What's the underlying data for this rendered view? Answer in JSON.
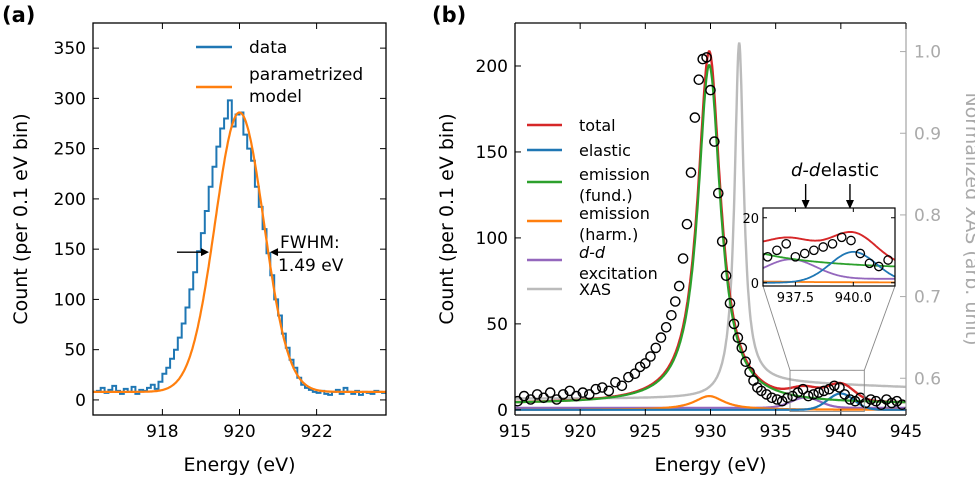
{
  "chart_data": [
    {
      "panel_label": "(a)",
      "type": "line",
      "xlabel": "Energy (eV)",
      "ylabel": "Count (per 0.1 eV bin)",
      "xlim": [
        916.2,
        923.8
      ],
      "ylim": [
        -15,
        375
      ],
      "x_ticks": [
        918,
        920,
        922
      ],
      "y_ticks": [
        0,
        50,
        100,
        150,
        200,
        250,
        300,
        350
      ],
      "legend": {
        "placement": "top-right",
        "entries": [
          "data",
          "parametrized model"
        ]
      },
      "annotation": {
        "line1": "FWHM:",
        "line2": "1.49 eV",
        "left_x": 919.26,
        "right_x": 920.74,
        "y": 147
      },
      "series": [
        {
          "name": "data",
          "style": "step",
          "color": "#1f77b4",
          "x": [
            916.2,
            916.3,
            916.4,
            916.5,
            916.6,
            916.7,
            916.8,
            916.9,
            917.0,
            917.1,
            917.2,
            917.3,
            917.4,
            917.5,
            917.6,
            917.7,
            917.8,
            917.9,
            918.0,
            918.1,
            918.2,
            918.3,
            918.4,
            918.5,
            918.6,
            918.7,
            918.8,
            918.9,
            919.0,
            919.1,
            919.2,
            919.3,
            919.4,
            919.5,
            919.6,
            919.7,
            919.8,
            919.9,
            920.0,
            920.1,
            920.2,
            920.3,
            920.4,
            920.5,
            920.6,
            920.7,
            920.8,
            920.9,
            921.0,
            921.1,
            921.2,
            921.3,
            921.4,
            921.5,
            921.6,
            921.7,
            921.8,
            921.9,
            922.0,
            922.1,
            922.2,
            922.3,
            922.4,
            922.5,
            922.6,
            922.7,
            922.8,
            922.9,
            923.0,
            923.1,
            923.2,
            923.3,
            923.4,
            923.5,
            923.6,
            923.7
          ],
          "values": [
            8,
            9,
            12,
            7,
            10,
            14,
            9,
            6,
            11,
            8,
            13,
            6,
            10,
            9,
            12,
            15,
            11,
            18,
            26,
            32,
            41,
            50,
            62,
            76,
            92,
            110,
            127,
            148,
            166,
            188,
            212,
            232,
            252,
            270,
            280,
            298,
            272,
            284,
            286,
            264,
            250,
            238,
            212,
            192,
            170,
            146,
            124,
            100,
            84,
            66,
            52,
            40,
            32,
            22,
            15,
            12,
            10,
            8,
            7,
            9,
            6,
            5,
            8,
            10,
            6,
            12,
            8,
            6,
            9,
            5,
            8,
            7,
            6,
            9,
            8,
            7
          ]
        },
        {
          "name": "parametrized model",
          "style": "smooth",
          "color": "#ff7f0e",
          "model": {
            "center": 920.0,
            "amplitude": 286,
            "sigma": 0.633,
            "baseline": 8
          }
        }
      ]
    },
    {
      "panel_label": "(b)",
      "type": "line",
      "xlabel": "Energy (eV)",
      "ylabel": "Count (per 0.1 eV bin)",
      "ylabel_right": "Normalized XAS (arb. unit)",
      "xlim": [
        915,
        945
      ],
      "ylim": [
        -3,
        225
      ],
      "ylim_right": [
        0.555,
        1.035
      ],
      "x_ticks": [
        915,
        920,
        925,
        930,
        935,
        940,
        945
      ],
      "y_ticks": [
        0,
        50,
        100,
        150,
        200
      ],
      "y_ticks_right": [
        0.6,
        0.7,
        0.8,
        0.9,
        1.0
      ],
      "legend": {
        "placement": "center-left",
        "entries": [
          {
            "line1": "total",
            "line2": "",
            "color": "#d62728"
          },
          {
            "line1": "elastic",
            "line2": "",
            "color": "#1f77b4"
          },
          {
            "line1": "emission",
            "line2": "(fund.)",
            "color": "#2ca02c"
          },
          {
            "line1": "emission",
            "line2": "(harm.)",
            "color": "#ff7f0e"
          },
          {
            "line1": "d-d",
            "line2": "excitation",
            "color": "#9467bd"
          },
          {
            "line1": "XAS",
            "line2": "",
            "color": "#bbbbbb"
          }
        ]
      },
      "annotations": [
        {
          "text": "d-d",
          "x": 937.3
        },
        {
          "text": "elastic",
          "x": 940.7
        }
      ],
      "inset": {
        "xlim": [
          936.1,
          941.8
        ],
        "ylim": [
          -1,
          23
        ],
        "x_ticks": [
          937.5,
          940.0
        ],
        "x_tick_labels": [
          "937.5",
          "940.0"
        ],
        "y_ticks": [
          0,
          20
        ],
        "zoom_box": {
          "x": [
            936.1,
            941.8
          ],
          "y": [
            -1,
            23
          ]
        }
      },
      "components": {
        "emission_fund": {
          "center": 929.9,
          "amplitude": 197,
          "hwhm": 1.05,
          "baseline": 3.5
        },
        "emission_harm": {
          "center": 929.9,
          "amplitude": 8,
          "hwhm": 1.4
        },
        "dd": {
          "center": 937.3,
          "amplitude": 6,
          "sigma": 1.1,
          "baseline": 1.2
        },
        "elastic": {
          "center": 940.0,
          "amplitude": 9.5,
          "sigma": 1.0
        },
        "xas": {
          "center": 932.2,
          "amplitude": 0.42,
          "hwhm": 0.42,
          "baseline": 0.575
        }
      },
      "series": [
        {
          "name": "data",
          "style": "markers",
          "x": [
            915.2,
            915.7,
            916.2,
            916.7,
            917.2,
            917.7,
            918.2,
            918.7,
            919.2,
            919.7,
            920.2,
            920.7,
            921.2,
            921.7,
            922.2,
            922.7,
            923.2,
            923.7,
            924.2,
            924.6,
            925.0,
            925.4,
            925.8,
            926.2,
            926.6,
            927.0,
            927.3,
            927.6,
            927.9,
            928.2,
            928.5,
            928.8,
            929.1,
            929.4,
            929.7,
            930.0,
            930.3,
            930.6,
            930.9,
            931.2,
            931.5,
            931.8,
            932.1,
            932.4,
            932.7,
            933.0,
            933.3,
            933.6,
            933.9,
            934.3,
            934.7,
            935.1,
            935.5,
            935.9,
            936.3,
            936.7,
            937.1,
            937.5,
            937.9,
            938.3,
            938.7,
            939.1,
            939.5,
            939.9,
            940.3,
            940.7,
            941.1,
            941.5,
            941.9,
            942.3,
            942.7,
            943.1,
            943.5,
            943.9,
            944.3,
            944.7
          ],
          "values": [
            5,
            8,
            6,
            9,
            7,
            10,
            6,
            9,
            11,
            8,
            10,
            9,
            12,
            13,
            11,
            16,
            14,
            19,
            21,
            25,
            27,
            31,
            36,
            42,
            48,
            55,
            63,
            72,
            88,
            108,
            138,
            170,
            192,
            204,
            205,
            186,
            156,
            126,
            98,
            78,
            62,
            50,
            42,
            36,
            28,
            22,
            17,
            13,
            11,
            9,
            7,
            6,
            5,
            7,
            8,
            10,
            12,
            8,
            9,
            10,
            11,
            12,
            14,
            13,
            9,
            6,
            5,
            7,
            4,
            6,
            5,
            3,
            6,
            4,
            5,
            3
          ]
        },
        {
          "name": "total",
          "color": "#d62728"
        },
        {
          "name": "elastic",
          "color": "#1f77b4"
        },
        {
          "name": "emission (fund.)",
          "color": "#2ca02c"
        },
        {
          "name": "emission (harm.)",
          "color": "#ff7f0e"
        },
        {
          "name": "d-d excitation",
          "color": "#9467bd"
        },
        {
          "name": "XAS",
          "color": "#bbbbbb"
        }
      ]
    }
  ]
}
